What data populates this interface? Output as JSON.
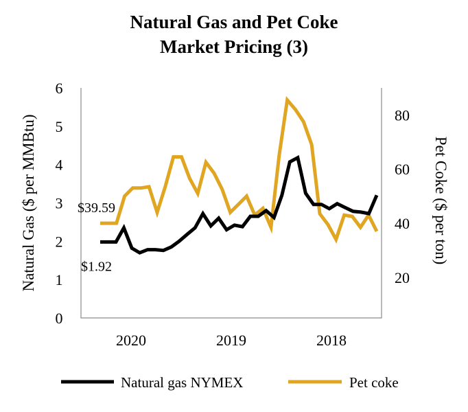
{
  "chart_data": {
    "type": "line",
    "title": [
      "Natural Gas and Pet Coke",
      "Market Pricing (3)"
    ],
    "y_left": {
      "label": "Natural Gas ($ per MMBtu)",
      "ticks": [
        0,
        1,
        2,
        3,
        4,
        5,
        6
      ],
      "lim": [
        0,
        6
      ]
    },
    "y_right": {
      "label": "Pet Coke ($ per ton)",
      "ticks": [
        20,
        40,
        60,
        80
      ],
      "lim": [
        5,
        90
      ]
    },
    "x_ticks": [
      "2020",
      "2019",
      "2018"
    ],
    "grid": false,
    "legend_position": "bottom",
    "series": [
      {
        "name": "Natural gas NYMEX",
        "axis": "left",
        "color": "#000000",
        "values": [
          1.98,
          1.98,
          1.98,
          2.35,
          1.82,
          1.7,
          1.78,
          1.78,
          1.76,
          1.85,
          2.0,
          2.18,
          2.35,
          2.72,
          2.4,
          2.6,
          2.3,
          2.42,
          2.38,
          2.65,
          2.65,
          2.8,
          2.62,
          3.2,
          4.07,
          4.18,
          3.25,
          2.96,
          2.96,
          2.85,
          2.98,
          2.88,
          2.78,
          2.76,
          2.72,
          3.2
        ]
      },
      {
        "name": "Pet coke",
        "axis": "right",
        "color": "#E0A621",
        "values": [
          40,
          40,
          40,
          50,
          53,
          53,
          53.5,
          44,
          53.5,
          64.5,
          64.5,
          56.5,
          51,
          62.5,
          58.5,
          52.5,
          44,
          47,
          50,
          43,
          45.5,
          38.5,
          65,
          85.5,
          82,
          77.5,
          69,
          43.5,
          39.5,
          34,
          43,
          42.5,
          38.5,
          43,
          37
        ]
      }
    ],
    "annotations": [
      {
        "text": "$39.59",
        "series": "Pet coke"
      },
      {
        "text": "$1.92",
        "series": "Natural gas NYMEX"
      }
    ]
  }
}
